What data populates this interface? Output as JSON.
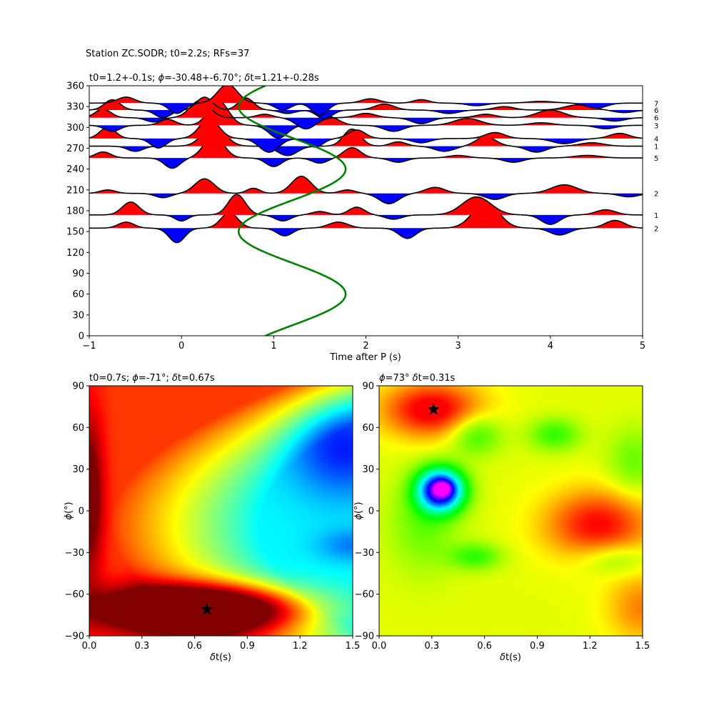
{
  "figure": {
    "suptitle": "Station ZC.SODR; t0=2.2s; RFs=37"
  },
  "chart_data": [
    {
      "type": "line",
      "title_parts": [
        "t0=1.2+-0.1s; ",
        "ϕ",
        "=-30.48+-6.70°; ",
        "δ",
        "t=1.21+-0.28s"
      ],
      "xlabel": "Time after P (s)",
      "ylabel": "",
      "xlim": [
        -1,
        5
      ],
      "ylim": [
        0,
        360
      ],
      "xticks": [
        -1,
        0,
        1,
        2,
        3,
        4,
        5
      ],
      "yticks": [
        0,
        30,
        60,
        90,
        120,
        150,
        180,
        210,
        240,
        270,
        300,
        330,
        360
      ],
      "positive_color": "#ff0000",
      "negative_color": "#0000ff",
      "trace_color": "#000000",
      "model_curve_color": "#008000",
      "traces": [
        {
          "baz": 155,
          "count": "2",
          "amp": 24,
          "peaks": [
            [
              -0.6,
              0.35,
              0.12
            ],
            [
              -0.05,
              -0.85,
              0.12
            ],
            [
              0.52,
              0.9,
              0.13
            ],
            [
              1.12,
              -0.45,
              0.12
            ],
            [
              1.7,
              0.35,
              0.15
            ],
            [
              2.45,
              -0.6,
              0.13
            ],
            [
              3.3,
              1.5,
              0.2
            ],
            [
              4.1,
              -0.4,
              0.15
            ],
            [
              4.7,
              0.45,
              0.15
            ]
          ]
        },
        {
          "baz": 174,
          "count": "1",
          "amp": 24,
          "peaks": [
            [
              -0.55,
              0.75,
              0.13
            ],
            [
              0.0,
              -0.35,
              0.1
            ],
            [
              0.6,
              1.2,
              0.13
            ],
            [
              1.1,
              -0.35,
              0.12
            ],
            [
              1.5,
              0.2,
              0.12
            ],
            [
              1.9,
              0.45,
              0.12
            ],
            [
              2.3,
              -0.25,
              0.13
            ],
            [
              3.2,
              1.05,
              0.22
            ],
            [
              4.0,
              -0.55,
              0.14
            ],
            [
              4.6,
              0.3,
              0.15
            ]
          ]
        },
        {
          "baz": 205,
          "count": "2",
          "amp": 24,
          "peaks": [
            [
              -0.8,
              0.2,
              0.12
            ],
            [
              -0.2,
              -0.25,
              0.12
            ],
            [
              0.25,
              0.85,
              0.15
            ],
            [
              0.78,
              0.3,
              0.1
            ],
            [
              1.3,
              1.0,
              0.15
            ],
            [
              1.8,
              0.2,
              0.12
            ],
            [
              2.25,
              -0.6,
              0.15
            ],
            [
              2.75,
              0.35,
              0.15
            ],
            [
              3.4,
              -0.35,
              0.15
            ],
            [
              4.15,
              0.5,
              0.2
            ],
            [
              4.85,
              -0.2,
              0.15
            ]
          ]
        },
        {
          "baz": 256,
          "count": "5",
          "amp": 24,
          "peaks": [
            [
              -0.85,
              0.35,
              0.12
            ],
            [
              -0.1,
              -0.6,
              0.12
            ],
            [
              0.35,
              1.3,
              0.15
            ],
            [
              1.0,
              -0.5,
              0.12
            ],
            [
              1.5,
              -0.3,
              0.12
            ],
            [
              1.85,
              0.6,
              0.13
            ],
            [
              2.35,
              -0.25,
              0.13
            ],
            [
              3.0,
              0.15,
              0.15
            ],
            [
              3.6,
              -0.25,
              0.15
            ],
            [
              4.4,
              0.15,
              0.2
            ]
          ]
        },
        {
          "baz": 273,
          "count": "1",
          "amp": 24,
          "peaks": [
            [
              -0.5,
              -0.3,
              0.12
            ],
            [
              0.35,
              1.2,
              0.17
            ],
            [
              1.15,
              -0.55,
              0.15
            ],
            [
              1.85,
              1.0,
              0.13
            ],
            [
              2.35,
              0.25,
              0.12
            ],
            [
              2.85,
              -0.3,
              0.15
            ],
            [
              3.3,
              0.55,
              0.15
            ],
            [
              3.85,
              -0.35,
              0.15
            ],
            [
              4.45,
              0.2,
              0.18
            ]
          ]
        },
        {
          "baz": 284,
          "count": "4",
          "amp": 24,
          "peaks": [
            [
              -0.8,
              0.65,
              0.12
            ],
            [
              -0.25,
              -0.55,
              0.12
            ],
            [
              0.3,
              1.15,
              0.15
            ],
            [
              0.95,
              -0.8,
              0.15
            ],
            [
              1.45,
              -0.5,
              0.12
            ],
            [
              1.9,
              0.5,
              0.13
            ],
            [
              2.6,
              -0.25,
              0.14
            ],
            [
              3.4,
              0.35,
              0.15
            ],
            [
              4.15,
              -0.3,
              0.18
            ],
            [
              4.75,
              0.3,
              0.15
            ]
          ]
        },
        {
          "baz": 303,
          "count": "3",
          "amp": 24,
          "peaks": [
            [
              -0.75,
              -0.35,
              0.12
            ],
            [
              -0.15,
              0.35,
              0.12
            ],
            [
              0.4,
              1.45,
              0.15
            ],
            [
              1.05,
              -0.75,
              0.14
            ],
            [
              1.6,
              0.5,
              0.15
            ],
            [
              2.3,
              -0.35,
              0.15
            ],
            [
              3.1,
              0.4,
              0.2
            ],
            [
              3.9,
              0.15,
              0.18
            ],
            [
              4.6,
              -0.2,
              0.15
            ]
          ]
        },
        {
          "baz": 314,
          "count": "6",
          "amp": 24,
          "peaks": [
            [
              -0.85,
              0.5,
              0.12
            ],
            [
              -0.3,
              -0.25,
              0.12
            ],
            [
              0.2,
              1.0,
              0.15
            ],
            [
              0.9,
              0.2,
              0.12
            ],
            [
              1.35,
              -0.65,
              0.15
            ],
            [
              2.0,
              0.25,
              0.15
            ],
            [
              2.6,
              -0.35,
              0.15
            ],
            [
              3.3,
              0.2,
              0.15
            ],
            [
              4.0,
              0.45,
              0.2
            ],
            [
              4.7,
              -0.2,
              0.15
            ]
          ]
        },
        {
          "baz": 325,
          "count": "6",
          "amp": 24,
          "peaks": [
            [
              -0.75,
              0.6,
              0.12
            ],
            [
              -0.2,
              -0.45,
              0.12
            ],
            [
              0.25,
              0.75,
              0.12
            ],
            [
              0.7,
              0.7,
              0.12
            ],
            [
              1.15,
              -0.2,
              0.12
            ],
            [
              1.55,
              -0.5,
              0.12
            ],
            [
              2.2,
              0.35,
              0.15
            ],
            [
              2.9,
              -0.2,
              0.15
            ],
            [
              3.5,
              0.2,
              0.15
            ],
            [
              4.3,
              0.3,
              0.2
            ],
            [
              4.8,
              -0.15,
              0.15
            ]
          ]
        },
        {
          "baz": 335,
          "count": "7",
          "amp": 24,
          "peaks": [
            [
              -0.6,
              0.35,
              0.13
            ],
            [
              -0.05,
              -0.6,
              0.12
            ],
            [
              0.5,
              1.1,
              0.15
            ],
            [
              1.1,
              -0.4,
              0.12
            ],
            [
              1.5,
              -0.7,
              0.12
            ],
            [
              2.05,
              0.25,
              0.14
            ],
            [
              2.6,
              0.2,
              0.12
            ],
            [
              3.2,
              -0.15,
              0.15
            ],
            [
              3.9,
              0.1,
              0.2
            ],
            [
              4.5,
              -0.3,
              0.15
            ]
          ]
        }
      ],
      "model_curve": {
        "t0": 1.2,
        "amplitude": 0.58,
        "period_deg": 180,
        "peak_baz": 60
      }
    },
    {
      "type": "heatmap",
      "title_parts": [
        "t0=0.7s; ",
        "ϕ",
        "=-71°; ",
        "δ",
        "t=0.67s"
      ],
      "xlabel_parts": [
        "δ",
        "t(s)"
      ],
      "ylabel_parts": [
        "ϕ",
        "(°)"
      ],
      "xlim": [
        0,
        1.5
      ],
      "ylim": [
        -90,
        90
      ],
      "xticks": [
        "0.0",
        "0.3",
        "0.6",
        "0.9",
        "1.2",
        "1.5"
      ],
      "yticks": [
        "-90",
        "-60",
        "-30",
        "0",
        "30",
        "60",
        "90"
      ],
      "colormap": "jet",
      "best": {
        "dt": 0.67,
        "phi": -71
      }
    },
    {
      "type": "heatmap",
      "title_parts": [
        "ϕ",
        "=73° ",
        "δ",
        "t=0.31s"
      ],
      "xlabel_parts": [
        "δ",
        "t(s)"
      ],
      "ylabel_parts": [
        "ϕ",
        "(°)"
      ],
      "xlim": [
        0,
        1.5
      ],
      "ylim": [
        -90,
        90
      ],
      "xticks": [
        "0.0",
        "0.3",
        "0.6",
        "0.9",
        "1.2",
        "1.5"
      ],
      "yticks": [
        "-90",
        "-60",
        "-30",
        "0",
        "30",
        "60",
        "90"
      ],
      "colormap": "hsv",
      "best": {
        "dt": 0.31,
        "phi": 73
      }
    }
  ]
}
